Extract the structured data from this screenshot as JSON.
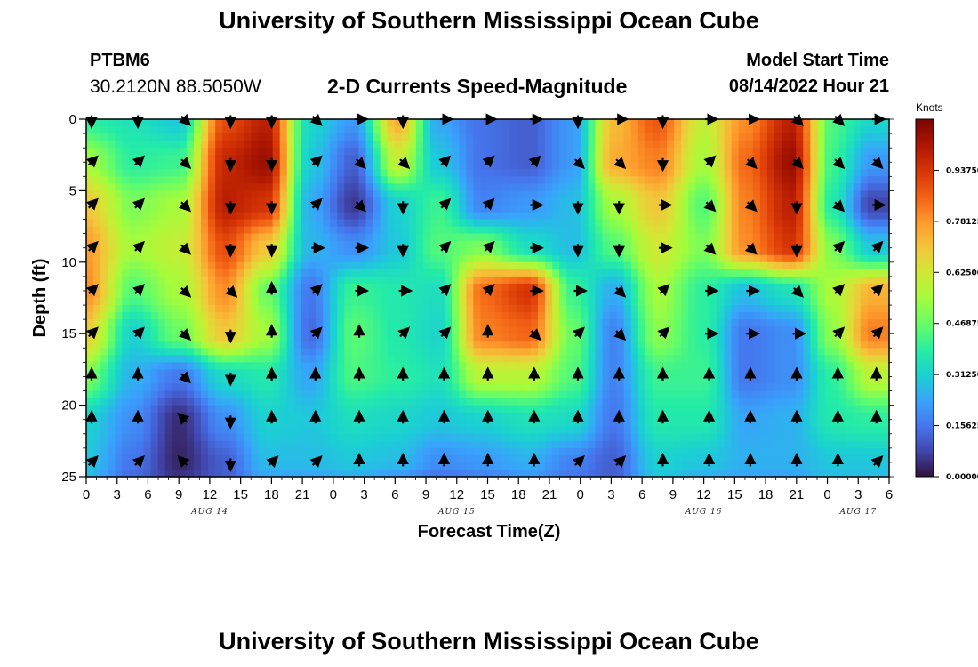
{
  "header": {
    "title": "University of Southern Mississippi Ocean Cube",
    "station": "PTBM6",
    "coords": "30.2120N  88.5050W",
    "subtitle": "2-D Currents Speed-Magnitude",
    "start_label": "Model Start Time",
    "start_value": "08/14/2022 Hour 21"
  },
  "footer": {
    "title": "University of Southern Mississippi Ocean Cube"
  },
  "chart_data": {
    "type": "heatmap",
    "title": "2-D Currents Speed-Magnitude",
    "xlabel": "Forecast Time(Z)",
    "ylabel": "Depth (ft)",
    "x_unit": "hours since 08/14 00Z",
    "x_range": [
      0,
      78
    ],
    "y_range": [
      0,
      25
    ],
    "x_ticks": [
      0,
      3,
      6,
      9,
      12,
      15,
      18,
      21,
      24,
      27,
      30,
      33,
      36,
      39,
      42,
      45,
      48,
      51,
      54,
      57,
      60,
      63,
      66,
      69,
      72,
      75,
      78
    ],
    "x_tick_labels": [
      "0",
      "3",
      "6",
      "9",
      "12",
      "15",
      "18",
      "21",
      "0",
      "3",
      "6",
      "9",
      "12",
      "15",
      "18",
      "21",
      "0",
      "3",
      "6",
      "9",
      "12",
      "15",
      "18",
      "21",
      "0",
      "3",
      "6"
    ],
    "day_labels": [
      {
        "x": 12,
        "text": "AUG 14"
      },
      {
        "x": 36,
        "text": "AUG 15"
      },
      {
        "x": 60,
        "text": "AUG 16"
      },
      {
        "x": 75,
        "text": "AUG 17"
      }
    ],
    "y_ticks": [
      0,
      5,
      10,
      15,
      20,
      25
    ],
    "colorbar": {
      "label": "Knots",
      "range": [
        0,
        1.09375
      ],
      "ticks": [
        "0.00000",
        "0.15625",
        "0.31250",
        "0.46875",
        "0.62500",
        "0.78125",
        "0.93750"
      ],
      "tick_values": [
        0,
        0.15625,
        0.3125,
        0.46875,
        0.625,
        0.78125,
        0.9375
      ]
    },
    "grid_times": [
      0,
      4.5,
      9,
      13.5,
      17.5,
      21.75,
      26,
      30.25,
      34.25,
      38.5,
      43,
      47.25,
      51.25,
      55.5,
      60,
      64,
      68.5,
      72.5,
      76.25
    ],
    "grid_depths": [
      0,
      3,
      6,
      9,
      12,
      15,
      18,
      21,
      24,
      25
    ],
    "speed_knots": [
      [
        0.4,
        0.36,
        0.3,
        0.9,
        1.0,
        0.33,
        0.22,
        0.75,
        0.24,
        0.15,
        0.12,
        0.22,
        0.72,
        0.88,
        0.6,
        0.8,
        1.0,
        0.44,
        0.33
      ],
      [
        0.55,
        0.4,
        0.42,
        0.98,
        1.05,
        0.3,
        0.12,
        0.6,
        0.3,
        0.15,
        0.12,
        0.22,
        0.75,
        0.82,
        0.55,
        0.85,
        1.05,
        0.42,
        0.22
      ],
      [
        0.7,
        0.5,
        0.55,
        1.0,
        0.95,
        0.25,
        0.06,
        0.32,
        0.42,
        0.18,
        0.22,
        0.28,
        0.55,
        0.7,
        0.45,
        0.82,
        1.0,
        0.38,
        0.08
      ],
      [
        0.78,
        0.55,
        0.6,
        0.9,
        0.7,
        0.27,
        0.2,
        0.3,
        0.45,
        0.5,
        0.35,
        0.28,
        0.45,
        0.62,
        0.5,
        0.8,
        0.95,
        0.5,
        0.3
      ],
      [
        0.8,
        0.45,
        0.55,
        0.8,
        0.48,
        0.16,
        0.42,
        0.38,
        0.35,
        0.85,
        0.95,
        0.42,
        0.25,
        0.55,
        0.4,
        0.28,
        0.36,
        0.56,
        0.74
      ],
      [
        0.68,
        0.32,
        0.48,
        0.7,
        0.55,
        0.14,
        0.46,
        0.38,
        0.33,
        0.82,
        0.86,
        0.48,
        0.18,
        0.52,
        0.4,
        0.16,
        0.2,
        0.52,
        0.82
      ],
      [
        0.5,
        0.26,
        0.16,
        0.34,
        0.38,
        0.24,
        0.44,
        0.4,
        0.36,
        0.58,
        0.58,
        0.45,
        0.18,
        0.42,
        0.42,
        0.16,
        0.2,
        0.4,
        0.58
      ],
      [
        0.32,
        0.2,
        0.04,
        0.2,
        0.32,
        0.3,
        0.35,
        0.33,
        0.3,
        0.32,
        0.36,
        0.34,
        0.16,
        0.38,
        0.38,
        0.24,
        0.26,
        0.38,
        0.4
      ],
      [
        0.3,
        0.16,
        0.03,
        0.12,
        0.28,
        0.28,
        0.3,
        0.28,
        0.2,
        0.22,
        0.26,
        0.18,
        0.12,
        0.32,
        0.3,
        0.26,
        0.26,
        0.3,
        0.3
      ],
      [
        0.28,
        0.14,
        0.05,
        0.12,
        0.24,
        0.24,
        0.26,
        0.22,
        0.16,
        0.18,
        0.22,
        0.16,
        0.12,
        0.3,
        0.26,
        0.24,
        0.24,
        0.28,
        0.28
      ]
    ],
    "vector_times": [
      0,
      4.5,
      9,
      13.5,
      17.5,
      21.75,
      26,
      30.25,
      34.25,
      38.5,
      43,
      47.25,
      51.25,
      55.5,
      60,
      64,
      68.5,
      72.5,
      76.25
    ],
    "vector_depths": [
      0,
      3,
      6,
      9,
      12,
      15,
      18,
      21,
      24
    ],
    "vector_directions_deg": [
      [
        180,
        180,
        135,
        180,
        180,
        135,
        90,
        180,
        90,
        90,
        90,
        180,
        90,
        180,
        90,
        90,
        135,
        135,
        90
      ],
      [
        45,
        45,
        135,
        180,
        180,
        45,
        135,
        135,
        45,
        45,
        45,
        135,
        135,
        180,
        45,
        135,
        135,
        135,
        135
      ],
      [
        45,
        45,
        135,
        180,
        180,
        45,
        135,
        180,
        45,
        45,
        90,
        180,
        180,
        90,
        135,
        135,
        180,
        135,
        90
      ],
      [
        45,
        45,
        135,
        180,
        180,
        90,
        90,
        180,
        45,
        45,
        90,
        180,
        180,
        90,
        135,
        135,
        180,
        45,
        45
      ],
      [
        45,
        45,
        135,
        135,
        0,
        45,
        90,
        90,
        45,
        45,
        90,
        90,
        135,
        45,
        90,
        90,
        135,
        45,
        45
      ],
      [
        45,
        45,
        135,
        180,
        0,
        45,
        0,
        45,
        45,
        0,
        135,
        45,
        135,
        45,
        90,
        90,
        90,
        45,
        45
      ],
      [
        0,
        0,
        135,
        180,
        0,
        0,
        0,
        0,
        0,
        0,
        0,
        0,
        0,
        0,
        0,
        0,
        0,
        0,
        0
      ],
      [
        0,
        0,
        315,
        180,
        0,
        0,
        0,
        0,
        0,
        0,
        0,
        0,
        0,
        0,
        0,
        0,
        0,
        0,
        0
      ],
      [
        45,
        45,
        315,
        180,
        45,
        45,
        0,
        0,
        0,
        0,
        0,
        45,
        45,
        0,
        0,
        0,
        0,
        0,
        45
      ]
    ]
  }
}
